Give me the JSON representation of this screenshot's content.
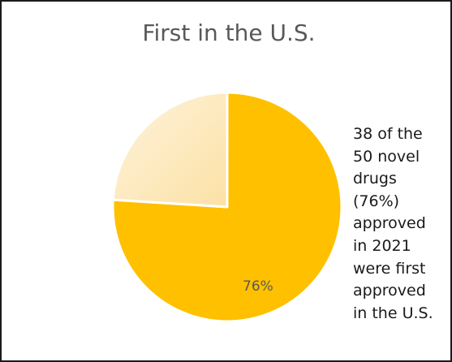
{
  "chart_data": {
    "type": "pie",
    "title": "First in the U.S.",
    "slices": [
      {
        "value": 76,
        "color": "#ffc000",
        "label": "76%"
      },
      {
        "value": 24,
        "color": "#fde9c0",
        "label": ""
      }
    ]
  },
  "annotation": {
    "lines": [
      "38 of the",
      "50 novel",
      "drugs",
      "(76%)",
      "approved",
      "in 2021",
      "were first",
      "approved",
      "in the U.S."
    ]
  }
}
